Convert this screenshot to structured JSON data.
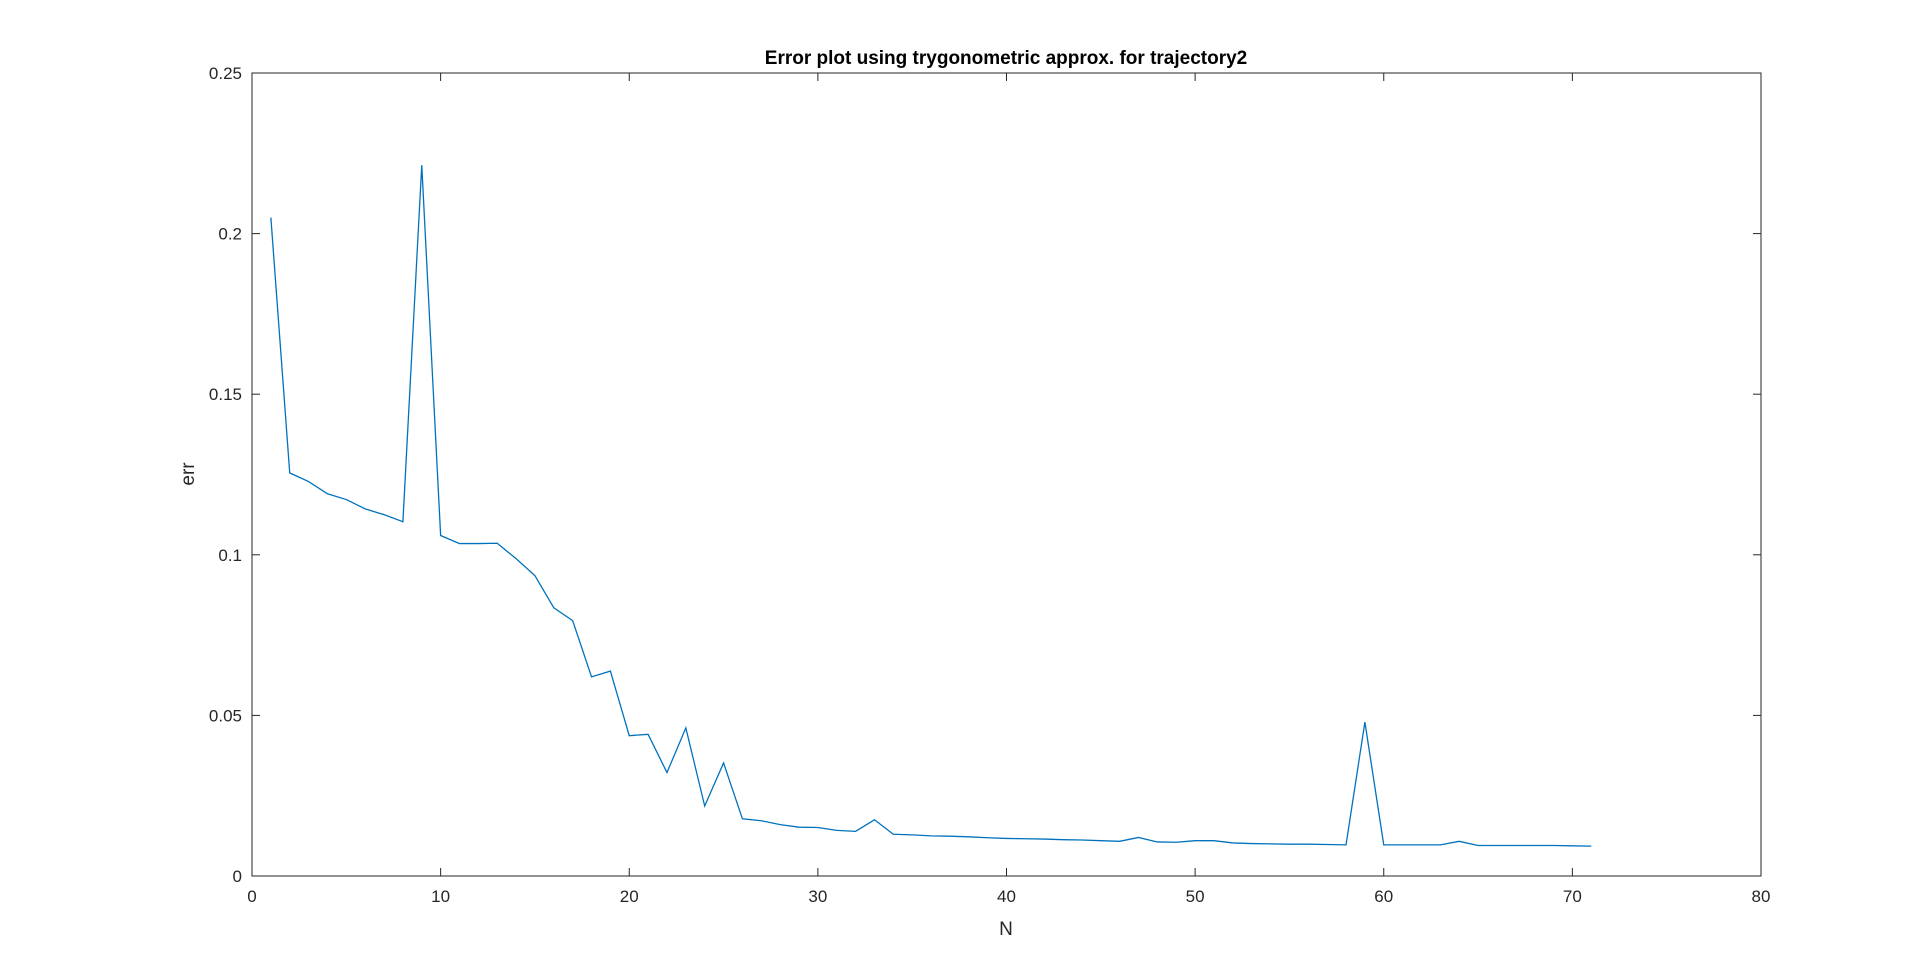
{
  "chart_data": {
    "type": "line",
    "title": "Error plot using trygonometric approx. for trajectory2",
    "xlabel": "N",
    "ylabel": "err",
    "xlim": [
      0,
      80
    ],
    "ylim": [
      0,
      0.25
    ],
    "xticks": [
      0,
      10,
      20,
      30,
      40,
      50,
      60,
      70,
      80
    ],
    "xtick_labels": [
      "0",
      "10",
      "20",
      "30",
      "40",
      "50",
      "60",
      "70",
      "80"
    ],
    "yticks": [
      0,
      0.05,
      0.1,
      0.15,
      0.2,
      0.25
    ],
    "ytick_labels": [
      "0",
      "0.05",
      "0.1",
      "0.15",
      "0.2",
      "0.25"
    ],
    "grid": false,
    "box": true,
    "series": [
      {
        "color": "#0072BD",
        "x": [
          1,
          2,
          3,
          4,
          5,
          6,
          7,
          8,
          9,
          10,
          11,
          12,
          13,
          14,
          15,
          16,
          17,
          18,
          19,
          20,
          21,
          22,
          23,
          24,
          25,
          26,
          27,
          28,
          29,
          30,
          31,
          32,
          33,
          34,
          35,
          36,
          37,
          38,
          39,
          40,
          41,
          42,
          43,
          44,
          45,
          46,
          47,
          48,
          49,
          50,
          51,
          52,
          53,
          54,
          55,
          56,
          57,
          58,
          59,
          60,
          61,
          62,
          63,
          64,
          65,
          66,
          67,
          68,
          69,
          70,
          71
        ],
        "y": [
          0.205,
          0.1255,
          0.1228,
          0.119,
          0.1172,
          0.1143,
          0.1125,
          0.1103,
          0.2213,
          0.106,
          0.1035,
          0.1035,
          0.1036,
          0.0988,
          0.0935,
          0.0835,
          0.0795,
          0.062,
          0.0638,
          0.0437,
          0.0441,
          0.0322,
          0.0461,
          0.0218,
          0.0352,
          0.0178,
          0.0172,
          0.016,
          0.0152,
          0.0151,
          0.0142,
          0.0139,
          0.0175,
          0.013,
          0.0128,
          0.0125,
          0.0124,
          0.0122,
          0.0119,
          0.0117,
          0.0116,
          0.0115,
          0.0113,
          0.0112,
          0.011,
          0.0108,
          0.012,
          0.0106,
          0.0105,
          0.011,
          0.011,
          0.0103,
          0.0101,
          0.01,
          0.0099,
          0.0099,
          0.0098,
          0.0097,
          0.0479,
          0.0097,
          0.0097,
          0.0097,
          0.0097,
          0.0108,
          0.0095,
          0.0095,
          0.0095,
          0.0095,
          0.0095,
          0.0094,
          0.0093
        ]
      }
    ]
  }
}
